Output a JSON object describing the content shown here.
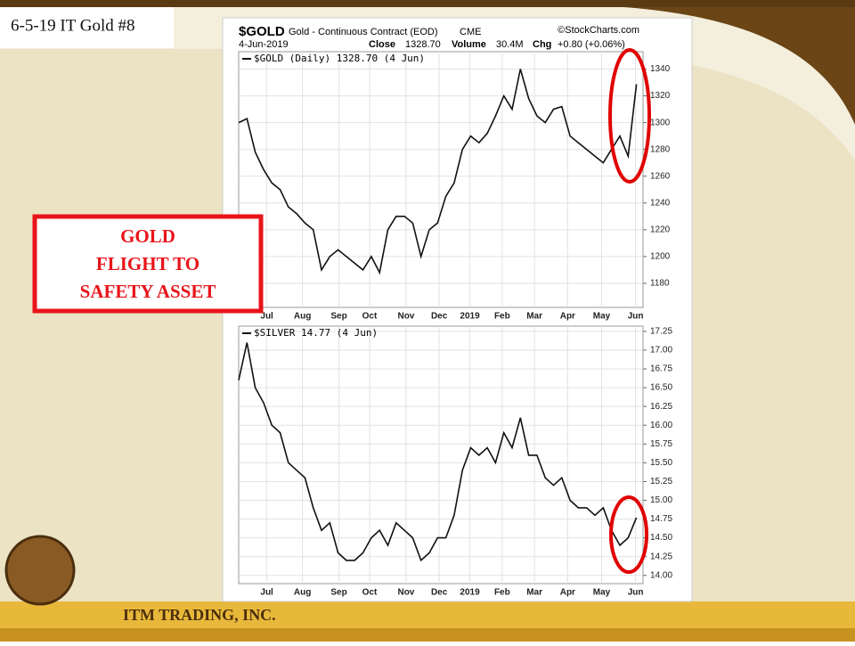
{
  "slide_title": "6-5-19 IT Gold #8",
  "callout": [
    "GOLD",
    "FLIGHT TO",
    "SAFETY ASSET"
  ],
  "footer": "ITM TRADING, INC.",
  "chart_header": {
    "symbol": "$GOLD",
    "description": "Gold - Continuous Contract (EOD)",
    "exchange": "CME",
    "source": "©StockCharts.com",
    "date": "4-Jun-2019",
    "close_label": "Close",
    "close": "1328.70",
    "volume_label": "Volume",
    "volume": "30.4M",
    "chg_label": "Chg",
    "chg": "+0.80 (+0.06%)"
  },
  "chart_data": [
    {
      "type": "line",
      "grid": true,
      "xlim": [
        0,
        48.8
      ],
      "xticks": [
        {
          "value": 3.4,
          "label": "Jul"
        },
        {
          "value": 7.7,
          "label": "Aug"
        },
        {
          "value": 12.1,
          "label": "Sep"
        },
        {
          "value": 15.8,
          "label": "Oct"
        },
        {
          "value": 20.2,
          "label": "Nov"
        },
        {
          "value": 24.2,
          "label": "Dec"
        },
        {
          "value": 27.9,
          "label": "2019"
        },
        {
          "value": 31.8,
          "label": "Feb"
        },
        {
          "value": 35.7,
          "label": "Mar"
        },
        {
          "value": 39.7,
          "label": "Apr"
        },
        {
          "value": 43.8,
          "label": "May"
        },
        {
          "value": 47.9,
          "label": "Jun"
        }
      ],
      "ylim": [
        1162,
        1353
      ],
      "yticks": [
        1180,
        1200,
        1220,
        1240,
        1260,
        1280,
        1300,
        1320,
        1340
      ],
      "series": [
        {
          "name": "$GOLD (Daily) 1328.70 (4 Jun)",
          "color": "#111111",
          "values": [
            1300,
            1303,
            1278,
            1265,
            1255,
            1250,
            1237,
            1232,
            1225,
            1220,
            1190,
            1200,
            1205,
            1200,
            1195,
            1190,
            1200,
            1188,
            1220,
            1230,
            1230,
            1225,
            1200,
            1220,
            1225,
            1245,
            1255,
            1280,
            1290,
            1285,
            1292,
            1305,
            1320,
            1310,
            1340,
            1318,
            1305,
            1300,
            1310,
            1312,
            1290,
            1285,
            1280,
            1275,
            1270,
            1280,
            1290,
            1275,
            1328.7
          ]
        }
      ]
    },
    {
      "type": "line",
      "grid": true,
      "xlim": [
        0,
        48.8
      ],
      "xticks": [
        {
          "value": 3.4,
          "label": "Jul"
        },
        {
          "value": 7.7,
          "label": "Aug"
        },
        {
          "value": 12.1,
          "label": "Sep"
        },
        {
          "value": 15.8,
          "label": "Oct"
        },
        {
          "value": 20.2,
          "label": "Nov"
        },
        {
          "value": 24.2,
          "label": "Dec"
        },
        {
          "value": 27.9,
          "label": "2019"
        },
        {
          "value": 31.8,
          "label": "Feb"
        },
        {
          "value": 35.7,
          "label": "Mar"
        },
        {
          "value": 39.7,
          "label": "Apr"
        },
        {
          "value": 43.8,
          "label": "May"
        },
        {
          "value": 47.9,
          "label": "Jun"
        }
      ],
      "ylim": [
        13.89,
        17.32
      ],
      "yticks": [
        {
          "value": 14,
          "label": "14.00"
        },
        14.25,
        {
          "value": 14.5,
          "label": "14.50"
        },
        14.75,
        {
          "value": 15,
          "label": "15.00"
        },
        15.25,
        {
          "value": 15.5,
          "label": "15.50"
        },
        15.75,
        {
          "value": 16,
          "label": "16.00"
        },
        16.25,
        {
          "value": 16.5,
          "label": "16.50"
        },
        16.75,
        {
          "value": 17,
          "label": "17.00"
        },
        17.25
      ],
      "series": [
        {
          "name": "$SILVER 14.77 (4 Jun)",
          "color": "#111111",
          "values": [
            16.6,
            17.1,
            16.5,
            16.3,
            16.0,
            15.9,
            15.5,
            15.4,
            15.3,
            14.9,
            14.6,
            14.7,
            14.3,
            14.2,
            14.2,
            14.3,
            14.5,
            14.6,
            14.4,
            14.7,
            14.6,
            14.5,
            14.2,
            14.3,
            14.5,
            14.5,
            14.8,
            15.4,
            15.7,
            15.6,
            15.7,
            15.5,
            15.9,
            15.7,
            16.1,
            15.6,
            15.6,
            15.3,
            15.2,
            15.3,
            15.0,
            14.9,
            14.9,
            14.8,
            14.9,
            14.6,
            14.4,
            14.5,
            14.77
          ]
        }
      ]
    }
  ]
}
